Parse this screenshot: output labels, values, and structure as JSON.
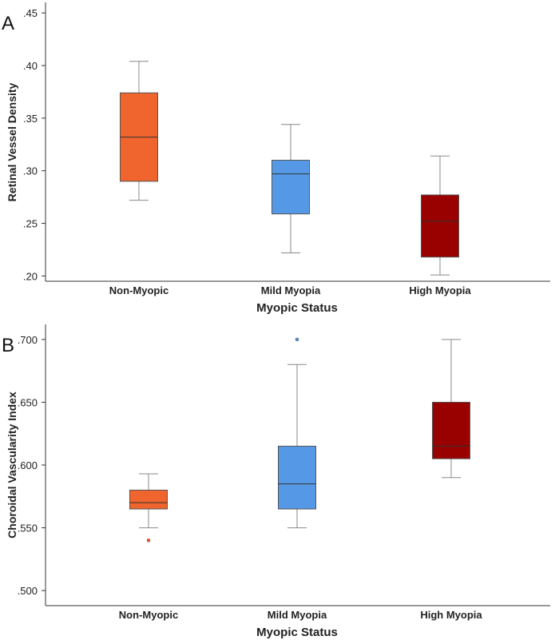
{
  "chart_data": [
    {
      "panel": "A",
      "type": "boxplot",
      "title": "",
      "xlabel": "Myopic Status",
      "ylabel": "Retinal Vessel Density",
      "ylim": [
        0.195,
        0.46
      ],
      "yticks": [
        0.2,
        0.25,
        0.3,
        0.35,
        0.4,
        0.45
      ],
      "ytick_labels": [
        ".20",
        ".25",
        ".30",
        ".35",
        ".40",
        ".45"
      ],
      "categories": [
        "Non-Myopic",
        "Mild Myopia",
        "High Myopia"
      ],
      "colors": [
        "#f0642d",
        "#5599e6",
        "#990000"
      ],
      "boxes": [
        {
          "name": "Non-Myopic",
          "min": 0.272,
          "q1": 0.29,
          "median": 0.332,
          "q3": 0.374,
          "max": 0.404,
          "outliers": []
        },
        {
          "name": "Mild Myopia",
          "min": 0.222,
          "q1": 0.259,
          "median": 0.297,
          "q3": 0.31,
          "max": 0.344,
          "outliers": []
        },
        {
          "name": "High Myopia",
          "min": 0.201,
          "q1": 0.218,
          "median": 0.252,
          "q3": 0.277,
          "max": 0.314,
          "outliers": []
        }
      ]
    },
    {
      "panel": "B",
      "type": "boxplot",
      "title": "",
      "xlabel": "Myopic Status",
      "ylabel": "Choroidal Vascularity Index",
      "ylim": [
        0.488,
        0.712
      ],
      "yticks": [
        0.5,
        0.55,
        0.6,
        0.65,
        0.7
      ],
      "ytick_labels": [
        ".500",
        ".550",
        ".600",
        ".650",
        ".700"
      ],
      "categories": [
        "Non-Myopic",
        "Mild Myopia",
        "High Myopia"
      ],
      "colors": [
        "#f0642d",
        "#5599e6",
        "#990000"
      ],
      "boxes": [
        {
          "name": "Non-Myopic",
          "min": 0.55,
          "q1": 0.565,
          "median": 0.57,
          "q3": 0.58,
          "max": 0.593,
          "outliers": [
            0.54
          ]
        },
        {
          "name": "Mild Myopia",
          "min": 0.55,
          "q1": 0.565,
          "median": 0.585,
          "q3": 0.615,
          "max": 0.68,
          "outliers": [
            0.7
          ]
        },
        {
          "name": "High Myopia",
          "min": 0.59,
          "q1": 0.605,
          "median": 0.615,
          "q3": 0.65,
          "max": 0.7,
          "outliers": []
        }
      ]
    }
  ]
}
